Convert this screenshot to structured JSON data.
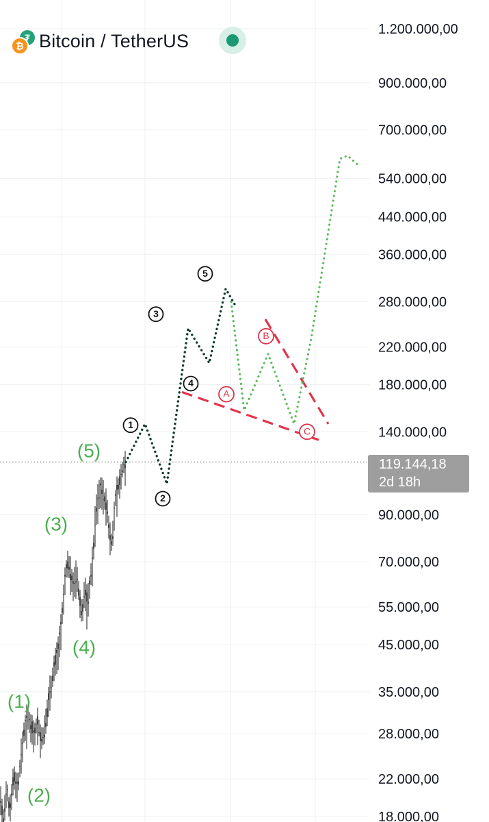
{
  "header": {
    "symbol": "Bitcoin / TetherUS",
    "btc_glyph": "₿",
    "usdt_glyph": "₮",
    "status": "market-open",
    "status_color": "#1a9a72"
  },
  "price_tag": {
    "price": "119.144,18",
    "countdown": "2d 18h"
  },
  "colors": {
    "historic": "#4caf50",
    "wave_black": "#0d3b2e",
    "projection_green": "#5cb85c",
    "correction_red": "#e0344a",
    "candle": "#1a1a1a"
  },
  "chart_data": {
    "type": "line",
    "scale": "log",
    "title": "Bitcoin / TetherUS",
    "ylim": [
      18000,
      1200000
    ],
    "grid": true,
    "y_ticks": [
      {
        "value": 1200000,
        "label": "1.200.000,00"
      },
      {
        "value": 900000,
        "label": "900.000,00"
      },
      {
        "value": 700000,
        "label": "700.000,00"
      },
      {
        "value": 540000,
        "label": "540.000,00"
      },
      {
        "value": 440000,
        "label": "440.000,00"
      },
      {
        "value": 360000,
        "label": "360.000,00"
      },
      {
        "value": 280000,
        "label": "280.000,00"
      },
      {
        "value": 220000,
        "label": "220.000,00"
      },
      {
        "value": 180000,
        "label": "180.000,00"
      },
      {
        "value": 140000,
        "label": "140.000,00"
      },
      {
        "value": 90000,
        "label": "90.000,00"
      },
      {
        "value": 70000,
        "label": "70.000,00"
      },
      {
        "value": 55000,
        "label": "55.000,00"
      },
      {
        "value": 45000,
        "label": "45.000,00"
      },
      {
        "value": 35000,
        "label": "35.000,00"
      },
      {
        "value": 28000,
        "label": "28.000,00"
      },
      {
        "value": 22000,
        "label": "22.000,00"
      },
      {
        "value": 18000,
        "label": "18.000,00"
      }
    ],
    "last_price": 119144.18,
    "historic_price": [
      {
        "t": 0,
        "p": 20500
      },
      {
        "t": 5,
        "p": 17500
      },
      {
        "t": 10,
        "p": 21000
      },
      {
        "t": 14,
        "p": 18500
      },
      {
        "t": 20,
        "p": 22500
      },
      {
        "t": 26,
        "p": 21000
      },
      {
        "t": 32,
        "p": 26000
      },
      {
        "t": 36,
        "p": 29000
      },
      {
        "t": 40,
        "p": 30500
      },
      {
        "t": 45,
        "p": 29500
      },
      {
        "t": 50,
        "p": 28000
      },
      {
        "t": 55,
        "p": 30000
      },
      {
        "t": 60,
        "p": 27000
      },
      {
        "t": 64,
        "p": 28000
      },
      {
        "t": 68,
        "p": 30500
      },
      {
        "t": 72,
        "p": 35000
      },
      {
        "t": 76,
        "p": 37000
      },
      {
        "t": 80,
        "p": 41000
      },
      {
        "t": 84,
        "p": 43000
      },
      {
        "t": 88,
        "p": 48000
      },
      {
        "t": 92,
        "p": 55000
      },
      {
        "t": 96,
        "p": 67000
      },
      {
        "t": 100,
        "p": 70000
      },
      {
        "t": 104,
        "p": 65000
      },
      {
        "t": 108,
        "p": 62000
      },
      {
        "t": 112,
        "p": 66000
      },
      {
        "t": 116,
        "p": 58000
      },
      {
        "t": 120,
        "p": 53000
      },
      {
        "t": 124,
        "p": 61000
      },
      {
        "t": 128,
        "p": 56000
      },
      {
        "t": 132,
        "p": 64000
      },
      {
        "t": 136,
        "p": 72000
      },
      {
        "t": 140,
        "p": 92000
      },
      {
        "t": 144,
        "p": 100000
      },
      {
        "t": 148,
        "p": 105000
      },
      {
        "t": 152,
        "p": 98000
      },
      {
        "t": 156,
        "p": 95000
      },
      {
        "t": 160,
        "p": 82000
      },
      {
        "t": 164,
        "p": 77000
      },
      {
        "t": 168,
        "p": 96000
      },
      {
        "t": 172,
        "p": 104000
      },
      {
        "t": 176,
        "p": 108000
      },
      {
        "t": 180,
        "p": 117000
      },
      {
        "t": 184,
        "p": 119144
      }
    ],
    "projection_black": [
      {
        "t": 184,
        "p": 119144
      },
      {
        "t": 212,
        "p": 146000
      },
      {
        "t": 244,
        "p": 106000
      },
      {
        "t": 275,
        "p": 243000
      },
      {
        "t": 306,
        "p": 202000
      },
      {
        "t": 330,
        "p": 300000
      },
      {
        "t": 345,
        "p": 273000
      }
    ],
    "projection_green": [
      {
        "t": 338,
        "p": 280000
      },
      {
        "t": 357,
        "p": 157000
      },
      {
        "t": 392,
        "p": 212000
      },
      {
        "t": 430,
        "p": 146000
      },
      {
        "t": 455,
        "p": 230000
      },
      {
        "t": 497,
        "p": 600000
      },
      {
        "t": 508,
        "p": 610000
      },
      {
        "t": 524,
        "p": 580000
      }
    ],
    "corrective_lines": [
      {
        "from": {
          "t": 266,
          "p": 173000
        },
        "to": {
          "t": 466,
          "p": 134000
        }
      },
      {
        "from": {
          "t": 388,
          "p": 255000
        },
        "to": {
          "t": 480,
          "p": 146000
        }
      }
    ],
    "historic_labels": [
      {
        "text": "(5)",
        "t": 130,
        "p": 125500
      },
      {
        "text": "(3)",
        "t": 82,
        "p": 85000
      },
      {
        "text": "(4)",
        "t": 123,
        "p": 44000
      },
      {
        "text": "(1)",
        "t": 28,
        "p": 33000
      },
      {
        "text": "(2)",
        "t": 57,
        "p": 20000
      }
    ],
    "wave_labels": [
      {
        "text": "1",
        "t": 191,
        "p": 145000
      },
      {
        "text": "2",
        "t": 238,
        "p": 98000
      },
      {
        "text": "3",
        "t": 228,
        "p": 262000
      },
      {
        "text": "4",
        "t": 279,
        "p": 181000
      },
      {
        "text": "5",
        "t": 300,
        "p": 325000
      }
    ],
    "correction_labels": [
      {
        "text": "A",
        "t": 331,
        "p": 171000
      },
      {
        "text": "B",
        "t": 389,
        "p": 233000
      },
      {
        "text": "C",
        "t": 449,
        "p": 140000
      }
    ]
  }
}
